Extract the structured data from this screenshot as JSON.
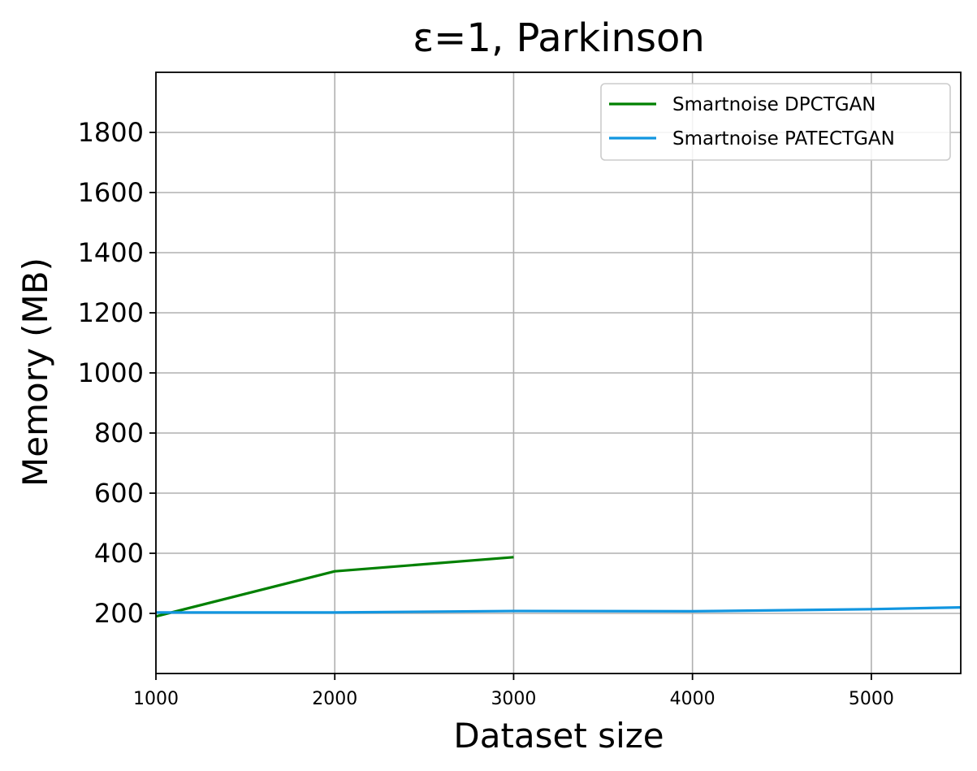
{
  "chart_data": {
    "type": "line",
    "title": "ε=1, Parkinson",
    "xlabel": "Dataset size",
    "ylabel": "Memory (MB)",
    "xlim": [
      1000,
      5500
    ],
    "ylim": [
      0,
      2000
    ],
    "xticks": [
      1000,
      2000,
      3000,
      4000,
      5000
    ],
    "yticks": [
      200,
      400,
      600,
      800,
      1000,
      1200,
      1400,
      1600,
      1800
    ],
    "grid": true,
    "legend_position": "top-right",
    "series": [
      {
        "name": "Smartnoise DPCTGAN",
        "color": "#008000",
        "x": [
          1000,
          2000,
          3000
        ],
        "y": [
          190,
          340,
          387
        ]
      },
      {
        "name": "Smartnoise PATECTGAN",
        "color": "#1296e0",
        "x": [
          1000,
          2000,
          3000,
          4000,
          5000,
          5500
        ],
        "y": [
          203,
          203,
          208,
          207,
          214,
          220
        ]
      }
    ]
  }
}
